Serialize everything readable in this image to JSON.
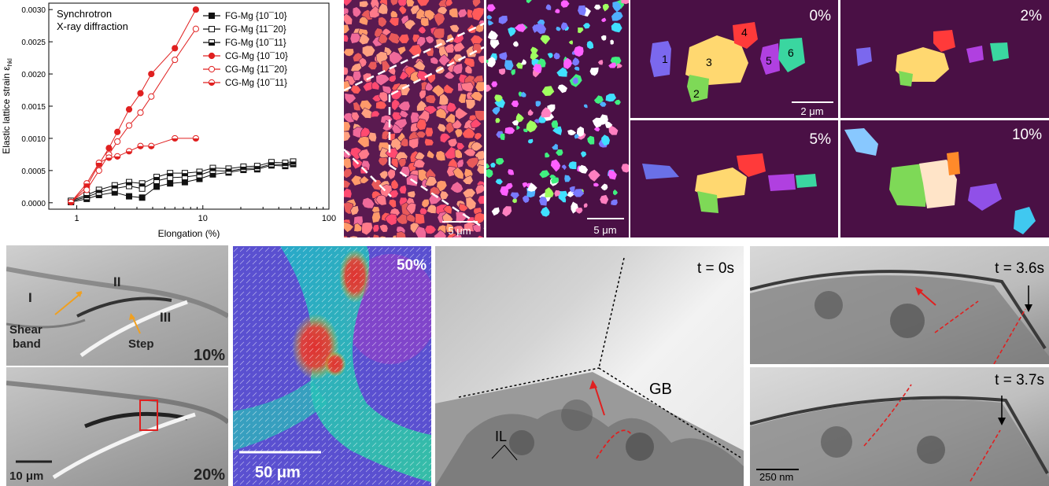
{
  "chart_data": {
    "type": "line",
    "title": "Synchrotron X-ray diffraction",
    "title_lines": [
      "Synchrotron",
      "X-ray diffraction"
    ],
    "xlabel": "Elongation (%)",
    "ylabel": "Elastic lattice strain ε",
    "ylabel_sub": "hkl",
    "x_scale": "log",
    "xlim": [
      0.6,
      100
    ],
    "ylim": [
      -0.0001,
      0.0031
    ],
    "x_ticks": [
      "1",
      "10",
      "100"
    ],
    "y_ticks": [
      "0.0000",
      "0.0005",
      "0.0010",
      "0.0015",
      "0.0020",
      "0.0025",
      "0.0030"
    ],
    "legend_position": "top-right",
    "series": [
      {
        "name": "FG-Mg {10¯10}",
        "color": "#111111",
        "marker": "square-filled",
        "x": [
          0.9,
          1.2,
          1.5,
          2.0,
          2.6,
          3.3,
          4.3,
          5.5,
          7.2,
          9.4,
          12,
          16,
          21,
          27,
          35,
          45,
          52
        ],
        "y": [
          1e-05,
          6e-05,
          0.00012,
          0.00016,
          0.0001,
          8e-05,
          0.00025,
          0.0003,
          0.00032,
          0.00037,
          0.00044,
          0.00047,
          0.00051,
          0.00052,
          0.00058,
          0.00057,
          0.0006
        ]
      },
      {
        "name": "FG-Mg {11¯20}",
        "color": "#111111",
        "marker": "square-open",
        "x": [
          0.9,
          1.2,
          1.5,
          2.0,
          2.6,
          3.3,
          4.3,
          5.5,
          7.2,
          9.4,
          12,
          16,
          21,
          27,
          35,
          45,
          52
        ],
        "y": [
          2e-05,
          9e-05,
          0.00016,
          0.00022,
          0.00026,
          0.00022,
          0.00034,
          0.00039,
          0.0004,
          0.00043,
          0.0005,
          0.00049,
          0.00053,
          0.00054,
          0.0006,
          0.00059,
          0.00062
        ]
      },
      {
        "name": "FG-Mg {10¯11}",
        "color": "#111111",
        "marker": "square-half",
        "x": [
          0.9,
          1.2,
          1.5,
          2.0,
          2.6,
          3.3,
          4.3,
          5.5,
          7.2,
          9.4,
          12,
          16,
          21,
          27,
          35,
          45,
          52
        ],
        "y": [
          3e-05,
          0.00012,
          0.0002,
          0.00027,
          0.00032,
          0.0003,
          0.0004,
          0.00046,
          0.00046,
          0.00048,
          0.00054,
          0.00053,
          0.00056,
          0.00057,
          0.00063,
          0.00062,
          0.00064
        ]
      },
      {
        "name": "CG-Mg {10¯10}",
        "color": "#e02020",
        "marker": "circle-filled",
        "x": [
          0.9,
          1.2,
          1.5,
          1.8,
          2.1,
          2.6,
          3.2,
          3.9,
          6.0,
          8.8
        ],
        "y": [
          1e-05,
          0.00025,
          0.0006,
          0.00085,
          0.0011,
          0.00145,
          0.0017,
          0.002,
          0.0024,
          0.003
        ]
      },
      {
        "name": "CG-Mg {11¯20}",
        "color": "#e02020",
        "marker": "circle-open",
        "x": [
          0.9,
          1.2,
          1.5,
          1.8,
          2.1,
          2.6,
          3.2,
          3.9,
          6.0,
          8.8
        ],
        "y": [
          1e-05,
          0.0002,
          0.0005,
          0.00075,
          0.00095,
          0.0012,
          0.0014,
          0.00165,
          0.00222,
          0.0027
        ]
      },
      {
        "name": "CG-Mg {10¯11}",
        "color": "#e02020",
        "marker": "circle-half",
        "x": [
          0.9,
          1.2,
          1.5,
          1.8,
          2.1,
          2.6,
          3.2,
          3.9,
          6.0,
          8.8
        ],
        "y": [
          1e-05,
          0.0003,
          0.00062,
          0.0007,
          0.00072,
          0.0008,
          0.00088,
          0.00088,
          0.001,
          0.001
        ]
      }
    ]
  },
  "ebsd": {
    "scale_left": "5 μm",
    "scale_right": "5 μm",
    "sequence_labels": [
      "0%",
      "2%",
      "5%",
      "10%"
    ],
    "grain_numbers": [
      "1",
      "2",
      "3",
      "4",
      "5",
      "6"
    ],
    "scale_seq": "2 μm",
    "colors": {
      "background": "#4a1045",
      "grain_red": "#ff4a4a",
      "grain_pink": "#ff7aa8",
      "grain_yellow": "#ffd070"
    }
  },
  "sem": {
    "labels": {
      "region_1": "I",
      "region_2": "II",
      "region_3": "III",
      "shear_band": "Shear band",
      "step": "Step"
    },
    "strain_top": "10%",
    "strain_bottom": "20%",
    "scale": "10 μm"
  },
  "dic": {
    "strain": "50%",
    "scale": "50 μm"
  },
  "tem": {
    "t0": "t = 0s",
    "t1": "t = 3.6s",
    "t2": "t = 3.7s",
    "gb": "GB",
    "il": "IL",
    "scale": "250 nm"
  }
}
